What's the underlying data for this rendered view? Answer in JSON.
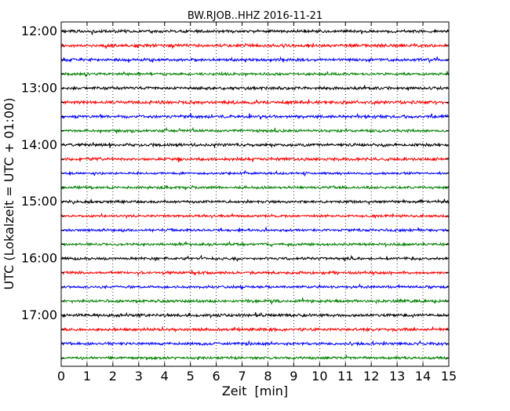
{
  "chart_data": {
    "type": "line",
    "title": "BW.RJOB..HHZ 2016-11-21",
    "xlabel": "Zeit  [min]",
    "ylabel": "UTC (Lokalzeit = UTC + 01:00)",
    "xlim": [
      0,
      15
    ],
    "x_ticks": [
      0,
      1,
      2,
      3,
      4,
      5,
      6,
      7,
      8,
      9,
      10,
      11,
      12,
      13,
      14,
      15
    ],
    "x_tick_labels": [
      "0",
      "1",
      "2",
      "3",
      "4",
      "5",
      "6",
      "7",
      "8",
      "9",
      "10",
      "11",
      "12",
      "13",
      "14",
      "15"
    ],
    "y_tick_labels": [
      "12:00",
      "13:00",
      "14:00",
      "15:00",
      "16:00",
      "17:00"
    ],
    "grid": "vertical dotted at each minute",
    "trace_colors": [
      "#000000",
      "#ff0000",
      "#0000ff",
      "#008000"
    ],
    "traces": [
      {
        "start": "12:00",
        "amplitude": 0.9
      },
      {
        "start": "12:15",
        "amplitude": 0.9
      },
      {
        "start": "12:30",
        "amplitude": 0.9
      },
      {
        "start": "12:45",
        "amplitude": 0.8
      },
      {
        "start": "13:00",
        "amplitude": 0.9
      },
      {
        "start": "13:15",
        "amplitude": 1.0
      },
      {
        "start": "13:30",
        "amplitude": 0.9
      },
      {
        "start": "13:45",
        "amplitude": 0.8
      },
      {
        "start": "14:00",
        "amplitude": 0.9
      },
      {
        "start": "14:15",
        "amplitude": 0.9
      },
      {
        "start": "14:30",
        "amplitude": 0.7
      },
      {
        "start": "14:45",
        "amplitude": 0.8
      },
      {
        "start": "15:00",
        "amplitude": 0.8
      },
      {
        "start": "15:15",
        "amplitude": 0.7
      },
      {
        "start": "15:30",
        "amplitude": 0.8
      },
      {
        "start": "15:45",
        "amplitude": 0.8
      },
      {
        "start": "16:00",
        "amplitude": 0.8
      },
      {
        "start": "16:15",
        "amplitude": 0.8
      },
      {
        "start": "16:30",
        "amplitude": 0.8
      },
      {
        "start": "16:45",
        "amplitude": 0.9
      },
      {
        "start": "17:00",
        "amplitude": 0.9
      },
      {
        "start": "17:15",
        "amplitude": 0.9
      },
      {
        "start": "17:30",
        "amplitude": 0.8
      },
      {
        "start": "17:45",
        "amplitude": 0.8
      }
    ]
  }
}
